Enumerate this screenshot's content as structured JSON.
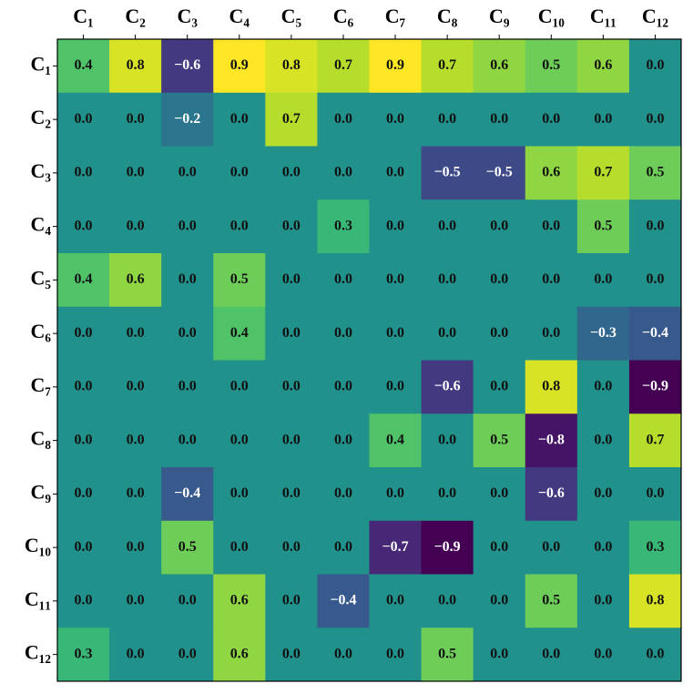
{
  "chart_data": {
    "type": "heatmap",
    "x_categories": [
      "C₁",
      "C₂",
      "C₃",
      "C₄",
      "C₅",
      "C₆",
      "C₇",
      "C₈",
      "C₉",
      "C₁₀",
      "C₁₁",
      "C₁₂"
    ],
    "y_categories": [
      "C₁",
      "C₂",
      "C₃",
      "C₄",
      "C₅",
      "C₆",
      "C₇",
      "C₈",
      "C₉",
      "C₁₀",
      "C₁₁",
      "C₁₂"
    ],
    "colormap": "viridis",
    "zlim": [
      -0.9,
      0.9
    ],
    "values": [
      [
        0.4,
        0.8,
        -0.6,
        0.9,
        0.8,
        0.7,
        0.9,
        0.7,
        0.6,
        0.5,
        0.6,
        0
      ],
      [
        0,
        0,
        -0.2,
        0,
        0.7,
        0,
        0,
        0,
        0,
        0,
        0,
        0
      ],
      [
        0,
        0,
        0,
        0,
        0,
        0,
        0,
        -0.5,
        -0.5,
        0.6,
        0.7,
        0.5
      ],
      [
        0,
        0,
        0,
        0,
        0,
        0.3,
        0,
        0,
        0,
        0,
        0.5,
        0
      ],
      [
        0.4,
        0.6,
        0,
        0.5,
        0,
        0,
        0,
        0,
        0,
        0,
        0,
        0
      ],
      [
        0,
        0,
        0,
        0.4,
        0,
        0,
        0,
        0,
        0,
        0,
        -0.3,
        -0.4
      ],
      [
        0,
        0,
        0,
        0,
        0,
        0,
        0,
        -0.6,
        0,
        0.8,
        0,
        -0.9
      ],
      [
        0,
        0,
        0,
        0,
        0,
        0,
        0.4,
        0,
        0.5,
        -0.8,
        0,
        0.7
      ],
      [
        0,
        0,
        -0.4,
        0,
        0,
        0,
        0,
        0,
        0,
        -0.6,
        0,
        0
      ],
      [
        0,
        0,
        0.5,
        0,
        0,
        0,
        -0.7,
        -0.9,
        0,
        0,
        0,
        0.3
      ],
      [
        0,
        0,
        0,
        0.6,
        0,
        -0.4,
        0,
        0,
        0,
        0.5,
        0,
        0.8
      ],
      [
        0.3,
        0,
        0,
        0.6,
        0,
        0,
        0,
        0.5,
        0,
        0,
        0,
        0
      ]
    ],
    "value_labels": [
      [
        "0.4",
        "0.8",
        "−0.6",
        "0.9",
        "0.8",
        "0.7",
        "0.9",
        "0.7",
        "0.6",
        "0.5",
        "0.6",
        "0.0"
      ],
      [
        "0.0",
        "0.0",
        "−0.2",
        "0.0",
        "0.7",
        "0.0",
        "0.0",
        "0.0",
        "0.0",
        "0.0",
        "0.0",
        "0.0"
      ],
      [
        "0.0",
        "0.0",
        "0.0",
        "0.0",
        "0.0",
        "0.0",
        "0.0",
        "−0.5",
        "−0.5",
        "0.6",
        "0.7",
        "0.5"
      ],
      [
        "0.0",
        "0.0",
        "0.0",
        "0.0",
        "0.0",
        "0.3",
        "0.0",
        "0.0",
        "0.0",
        "0.0",
        "0.5",
        "0.0"
      ],
      [
        "0.4",
        "0.6",
        "0.0",
        "0.5",
        "0.0",
        "0.0",
        "0.0",
        "0.0",
        "0.0",
        "0.0",
        "0.0",
        "0.0"
      ],
      [
        "0.0",
        "0.0",
        "0.0",
        "0.4",
        "0.0",
        "0.0",
        "0.0",
        "0.0",
        "0.0",
        "0.0",
        "−0.3",
        "−0.4"
      ],
      [
        "0.0",
        "0.0",
        "0.0",
        "0.0",
        "0.0",
        "0.0",
        "0.0",
        "−0.6",
        "0.0",
        "0.8",
        "0.0",
        "−0.9"
      ],
      [
        "0.0",
        "0.0",
        "0.0",
        "0.0",
        "0.0",
        "0.0",
        "0.4",
        "0.0",
        "0.5",
        "−0.8",
        "0.0",
        "0.7"
      ],
      [
        "0.0",
        "0.0",
        "−0.4",
        "0.0",
        "0.0",
        "0.0",
        "0.0",
        "0.0",
        "0.0",
        "−0.6",
        "0.0",
        "0.0"
      ],
      [
        "0.0",
        "0.0",
        "0.5",
        "0.0",
        "0.0",
        "0.0",
        "−0.7",
        "−0.9",
        "0.0",
        "0.0",
        "0.0",
        "0.3"
      ],
      [
        "0.0",
        "0.0",
        "0.0",
        "0.6",
        "0.0",
        "−0.4",
        "0.0",
        "0.0",
        "0.0",
        "0.5",
        "0.0",
        "0.8"
      ],
      [
        "0.3",
        "0.0",
        "0.0",
        "0.6",
        "0.0",
        "0.0",
        "0.0",
        "0.5",
        "0.0",
        "0.0",
        "0.0",
        "0.0"
      ]
    ]
  }
}
